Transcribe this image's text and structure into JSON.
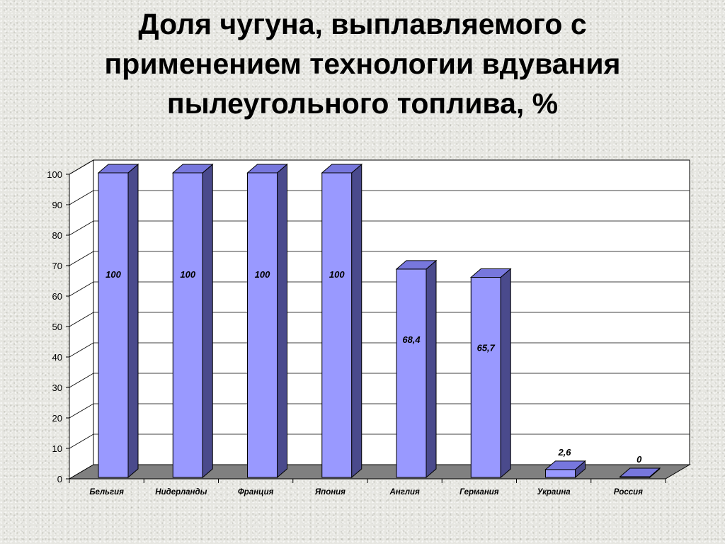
{
  "slide": {
    "title_lines": [
      "Доля чугуна, выплавляемого с",
      "применением технологии вдувания",
      "пылеугольного топлива, %"
    ]
  },
  "chart_data": {
    "type": "bar",
    "title": "Доля чугуна, выплавляемого с применением технологии вдувания пылеугольного топлива, %",
    "categories": [
      "Бельгия",
      "Нидерланды",
      "Франция",
      "Япония",
      "Англия",
      "Германия",
      "Украина",
      "Россия"
    ],
    "values": [
      100,
      100,
      100,
      100,
      68.4,
      65.7,
      2.6,
      0
    ],
    "data_labels": [
      "100",
      "100",
      "100",
      "100",
      "68,4",
      "65,7",
      "2,6",
      "0"
    ],
    "yticks": [
      "0",
      "10",
      "20",
      "30",
      "40",
      "50",
      "60",
      "70",
      "80",
      "90",
      "100"
    ],
    "ylim": [
      0,
      100
    ],
    "grid": true,
    "legend": "none",
    "three_d": true,
    "colors": {
      "bar_front": "#9999ff",
      "bar_side": "#4a4a8c",
      "bar_top": "#7777dd",
      "floor": "#808080",
      "back_wall": "#ffffff",
      "side_wall": "#ffffff",
      "gridline": "#000000"
    }
  }
}
